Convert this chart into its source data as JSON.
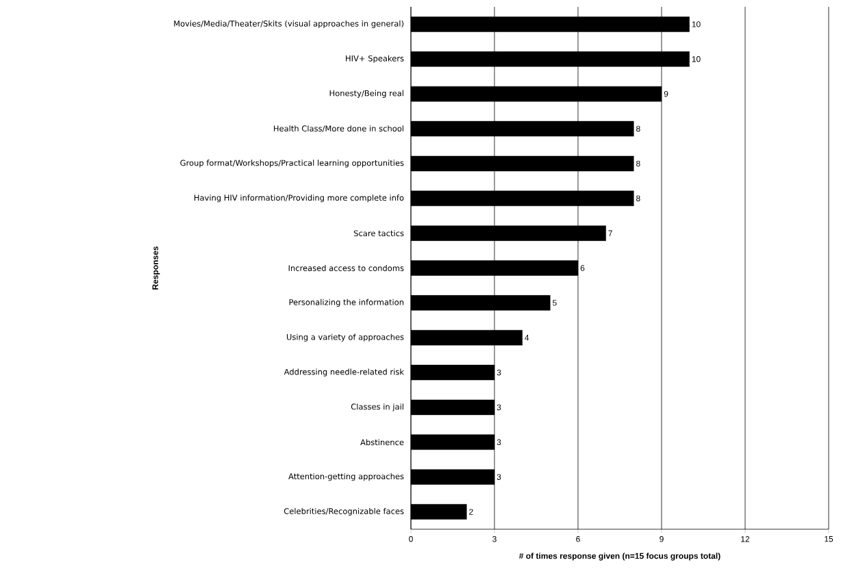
{
  "chart_data": {
    "type": "bar",
    "orientation": "horizontal",
    "xlabel": "# of times response given (n=15 focus groups total)",
    "ylabel": "Responses",
    "categories": [
      "Movies/Media/Theater/Skits (visual approaches in general)",
      "HIV+ Speakers",
      "Honesty/Being real",
      "Health Class/More done in school",
      "Group format/Workshops/Practical learning opportunities",
      "Having HIV information/Providing more complete info",
      "Scare tactics",
      "Increased access to condoms",
      "Personalizing the information",
      "Using a variety of approaches",
      "Addressing needle-related risk",
      "Classes in jail",
      "Abstinence",
      "Attention-getting approaches",
      "Celebrities/Recognizable faces"
    ],
    "values": [
      10,
      10,
      9,
      8,
      8,
      8,
      7,
      6,
      5,
      4,
      3,
      3,
      3,
      3,
      2
    ],
    "color": "#000000",
    "xlim": [
      0,
      15
    ],
    "xticks": [
      0,
      3,
      6,
      9,
      12,
      15
    ],
    "grid": "x",
    "data_labels": true
  }
}
